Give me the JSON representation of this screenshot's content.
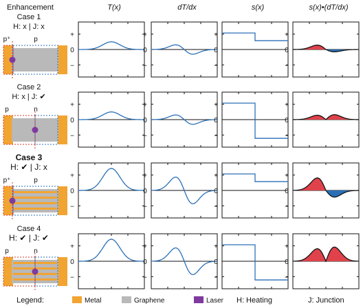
{
  "header": {
    "enhancement": "Enhancement",
    "columns": [
      "T(x)",
      "dT/dx",
      "s(x)",
      "s(x)•(dT/dx)"
    ]
  },
  "axis_ticks": [
    "+",
    "0",
    "−"
  ],
  "cases": [
    {
      "title": "Case 1",
      "condition": "H: x | J: x",
      "labels": [
        {
          "text": "p⁺",
          "color": "#d33a2c"
        },
        {
          "text": "p",
          "color": "#2a6fb6"
        }
      ],
      "heating": false,
      "junction": false
    },
    {
      "title": "Case 2",
      "condition": "H: x | J: ✔",
      "labels": [
        {
          "text": "p",
          "color": "#d33a2c"
        },
        {
          "text": "n",
          "color": "#2a6fb6"
        }
      ],
      "heating": false,
      "junction": true
    },
    {
      "title": "Case 3",
      "condition": "H: ✔ | J: x",
      "labels": [
        {
          "text": "p⁺",
          "color": "#d33a2c"
        },
        {
          "text": "p",
          "color": "#2a6fb6"
        }
      ],
      "heating": true,
      "junction": false
    },
    {
      "title": "Case 4",
      "condition": "H: ✔ | J: ✔",
      "labels": [
        {
          "text": "p",
          "color": "#d33a2c"
        },
        {
          "text": "n",
          "color": "#2a6fb6"
        }
      ],
      "heating": true,
      "junction": true
    }
  ],
  "legend": {
    "title": "Legend:",
    "items": [
      {
        "label": "Metal",
        "color": "#f2a431"
      },
      {
        "label": "Graphene",
        "color": "#b9b9b9"
      },
      {
        "label": "Laser",
        "color": "#7e3a9e"
      },
      {
        "label": "H: Heating",
        "color": ""
      },
      {
        "label": "J: Junction",
        "color": ""
      }
    ]
  },
  "colors": {
    "curve": "#2a6fb6",
    "positive_fill": "#e0424b",
    "negative_fill": "#2a6fb6",
    "metal": "#f2a431",
    "graphene": "#b9b9b9",
    "laser": "#7e3a9e",
    "p_side": "#d33a2c",
    "n_side": "#2a6fb6"
  }
}
